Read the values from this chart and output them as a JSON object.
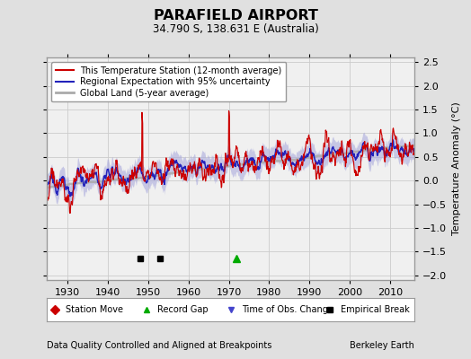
{
  "title": "PARAFIELD AIRPORT",
  "subtitle": "34.790 S, 138.631 E (Australia)",
  "ylabel": "Temperature Anomaly (°C)",
  "footer_left": "Data Quality Controlled and Aligned at Breakpoints",
  "footer_right": "Berkeley Earth",
  "xlim": [
    1925,
    2016
  ],
  "ylim": [
    -2.1,
    2.6
  ],
  "yticks": [
    -2,
    -1.5,
    -1,
    -0.5,
    0,
    0.5,
    1,
    1.5,
    2,
    2.5
  ],
  "xticks": [
    1930,
    1940,
    1950,
    1960,
    1970,
    1980,
    1990,
    2000,
    2010
  ],
  "bg_color": "#e0e0e0",
  "plot_bg_color": "#f0f0f0",
  "station_color": "#cc0000",
  "regional_color": "#2222bb",
  "regional_fill_color": "#aaaadd",
  "global_color": "#aaaaaa",
  "marker_events": {
    "empirical_break": [
      1948,
      1953
    ],
    "record_gap": [
      1972
    ],
    "obs_change": [],
    "station_move": []
  },
  "seed": 17
}
